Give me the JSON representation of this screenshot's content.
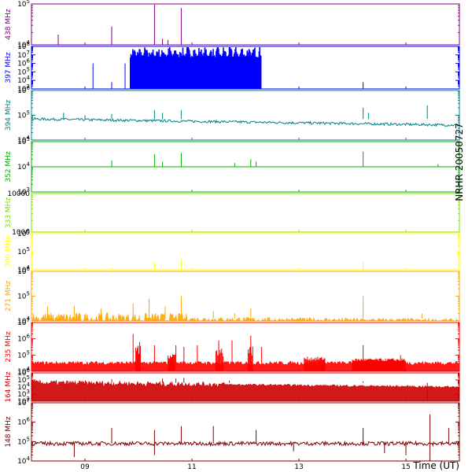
{
  "chart_data": {
    "type": "line",
    "title": "NRHR 20050727",
    "xlabel": "Time (UT)",
    "x_range": [
      8.0,
      16.0
    ],
    "x_ticks": [
      "09",
      "11",
      "13",
      "15"
    ],
    "x_tick_values": [
      9,
      11,
      13,
      15
    ],
    "panels": [
      {
        "name": "438 MHz",
        "color": "#800080",
        "y_ticks": [
          "10^5",
          "10^4"
        ],
        "y_exponents": [
          5,
          4
        ],
        "baseline_exp": 4.0,
        "noise": 0.0,
        "fill": false,
        "spikes": [
          [
            8.5,
            4.25
          ],
          [
            9.5,
            4.45
          ],
          [
            10.3,
            5.0
          ],
          [
            10.45,
            4.15
          ],
          [
            10.55,
            4.12
          ],
          [
            10.8,
            4.9
          ]
        ]
      },
      {
        "name": "397 MHz",
        "color": "#0000ff",
        "y_ticks": [
          "10^8",
          "10^7",
          "10^6",
          "10^5",
          "10^4",
          "10^3"
        ],
        "y_exponents": [
          8,
          7,
          6,
          5,
          4,
          3
        ],
        "baseline_exp": 3.0,
        "noise": 0.0,
        "fill": false,
        "spikes": [
          [
            9.15,
            6.0
          ],
          [
            9.5,
            3.8
          ],
          [
            9.75,
            6.0
          ],
          [
            14.2,
            3.8
          ]
        ],
        "block": {
          "x_start": 9.85,
          "x_end": 12.3,
          "y_min": 5.0,
          "y_max": 8.1
        }
      },
      {
        "name": "394 MHz",
        "color": "#008080",
        "y_ticks": [
          "10^6",
          "10^5",
          "10^4"
        ],
        "y_exponents": [
          6,
          5,
          4
        ],
        "baseline_exp": 4.85,
        "baseline_end_exp": 4.6,
        "noise": 0.05,
        "fill": false,
        "spikes": [
          [
            8.6,
            5.1
          ],
          [
            9.0,
            5.0
          ],
          [
            9.5,
            5.05
          ],
          [
            10.3,
            5.2
          ],
          [
            10.45,
            5.1
          ],
          [
            10.8,
            5.2
          ],
          [
            14.2,
            5.3
          ],
          [
            14.3,
            5.1
          ],
          [
            15.4,
            5.4
          ]
        ]
      },
      {
        "name": "352 MHz",
        "color": "#00b000",
        "y_ticks": [
          "10^5",
          "10^4",
          "10^3"
        ],
        "y_exponents": [
          5,
          4,
          3
        ],
        "baseline_exp": 4.0,
        "noise": 0.0,
        "fill": false,
        "spikes": [
          [
            9.5,
            4.25
          ],
          [
            10.3,
            4.5
          ],
          [
            10.45,
            4.2
          ],
          [
            10.8,
            4.55
          ],
          [
            11.8,
            4.15
          ],
          [
            12.1,
            4.3
          ],
          [
            12.2,
            4.2
          ],
          [
            14.2,
            4.6
          ],
          [
            15.6,
            4.1
          ]
        ]
      },
      {
        "name": "333 MHz",
        "color": "#80e000",
        "y_ticks": [
          "10000",
          "1000"
        ],
        "y_exponents": [
          4,
          3
        ],
        "baseline_exp": 2.0,
        "noise": 0.0,
        "fill": false,
        "spikes": []
      },
      {
        "name": "300 MHz",
        "color": "#ffff00",
        "y_ticks": [
          "10^6",
          "10^5",
          "10^4"
        ],
        "y_exponents": [
          6,
          5,
          4
        ],
        "baseline_exp": 4.0,
        "noise": 0.0,
        "fill": false,
        "spikes": [
          [
            9.5,
            4.15
          ],
          [
            10.3,
            4.45
          ],
          [
            10.8,
            4.55
          ],
          [
            14.2,
            4.45
          ]
        ]
      },
      {
        "name": "271 MHz",
        "color": "#ffa500",
        "y_ticks": [
          "10^6",
          "10^5",
          "10^4"
        ],
        "y_exponents": [
          6,
          5,
          4
        ],
        "baseline_exp": 4.1,
        "baseline_end_exp": 4.0,
        "noise": 0.1,
        "fill": true,
        "burst_range": [
          8.0,
          10.9
        ],
        "spikes": [
          [
            8.3,
            4.6
          ],
          [
            8.8,
            4.6
          ],
          [
            9.3,
            4.5
          ],
          [
            9.9,
            4.7
          ],
          [
            10.2,
            4.9
          ],
          [
            10.5,
            4.6
          ],
          [
            10.8,
            5.0
          ],
          [
            11.4,
            4.4
          ],
          [
            11.8,
            4.3
          ],
          [
            12.1,
            4.5
          ],
          [
            14.2,
            5.0
          ],
          [
            15.3,
            4.3
          ]
        ]
      },
      {
        "name": "235 MHz",
        "color": "#ff0000",
        "y_ticks": [
          "10^7",
          "10^6",
          "10^5",
          "10^4"
        ],
        "y_exponents": [
          7,
          6,
          5,
          4
        ],
        "baseline_exp": 4.5,
        "noise": 0.12,
        "fill": true,
        "spikes": [
          [
            9.9,
            6.3
          ],
          [
            10.3,
            5.6
          ],
          [
            10.7,
            5.6
          ],
          [
            10.85,
            5.5
          ],
          [
            11.1,
            5.6
          ],
          [
            11.5,
            5.9
          ],
          [
            11.75,
            5.9
          ],
          [
            12.1,
            6.2
          ],
          [
            12.3,
            5.5
          ],
          [
            14.2,
            5.6
          ],
          [
            14.9,
            5.0
          ]
        ],
        "blocks": [
          [
            9.95,
            10.05,
            5.8
          ],
          [
            10.55,
            10.7,
            5.2
          ],
          [
            11.45,
            11.6,
            5.5
          ],
          [
            12.05,
            12.15,
            5.6
          ],
          [
            13.1,
            13.5,
            4.9
          ],
          [
            14.0,
            15.0,
            4.8
          ]
        ]
      },
      {
        "name": "164 MHz",
        "color": "#cc0000",
        "y_ticks": [
          "10^6",
          "10^5",
          "10^4",
          "10^3",
          "10^2"
        ],
        "y_exponents": [
          6,
          5,
          4,
          3,
          2
        ],
        "baseline_exp": 4.6,
        "baseline_end_exp": 4.0,
        "noise": 0.15,
        "fill": true,
        "burst_range": [
          8.0,
          11.6
        ],
        "spikes": [
          [
            9.5,
            5.1
          ],
          [
            10.45,
            5.2
          ],
          [
            10.7,
            5.2
          ],
          [
            10.85,
            5.3
          ],
          [
            11.7,
            4.9
          ],
          [
            14.2,
            4.8
          ],
          [
            14.3,
            4.6
          ]
        ],
        "dips": [
          [
            15.4,
            2.0
          ]
        ]
      },
      {
        "name": "148 MHz",
        "color": "#800000",
        "y_ticks": [
          "10^7",
          "10^6",
          "10^5",
          "10^4"
        ],
        "y_exponents": [
          7,
          6,
          5,
          4
        ],
        "baseline_exp": 4.9,
        "noise": 0.1,
        "fill": false,
        "spikes": [
          [
            9.5,
            5.7
          ],
          [
            10.3,
            5.6
          ],
          [
            10.8,
            5.8
          ],
          [
            11.4,
            5.8
          ],
          [
            12.2,
            5.6
          ],
          [
            14.2,
            5.7
          ],
          [
            15.45,
            6.4
          ],
          [
            15.8,
            5.7
          ]
        ],
        "dips": [
          [
            8.8,
            4.2
          ],
          [
            10.3,
            4.3
          ],
          [
            12.9,
            4.5
          ],
          [
            14.6,
            4.4
          ],
          [
            15.0,
            4.3
          ],
          [
            15.45,
            3.8
          ]
        ]
      }
    ]
  }
}
